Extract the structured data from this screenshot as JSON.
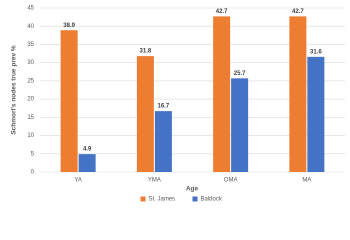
{
  "chart_data": {
    "type": "bar",
    "x_label": "Age",
    "y_label": "Schmorl's nodes true prev %",
    "categories": [
      "YA",
      "YMA",
      "OMA",
      "MA"
    ],
    "series": [
      {
        "name": "St. James",
        "color": "#ed7d31",
        "values": [
          38.9,
          31.8,
          42.7,
          42.7
        ]
      },
      {
        "name": "Baldock",
        "color": "#4472c4",
        "values": [
          4.9,
          16.7,
          25.7,
          31.6
        ]
      }
    ],
    "ylim": [
      0,
      45
    ],
    "yticks": [
      0,
      5,
      10,
      15,
      20,
      25,
      30,
      35,
      40,
      45
    ],
    "grid": true,
    "legend": "bottom"
  }
}
